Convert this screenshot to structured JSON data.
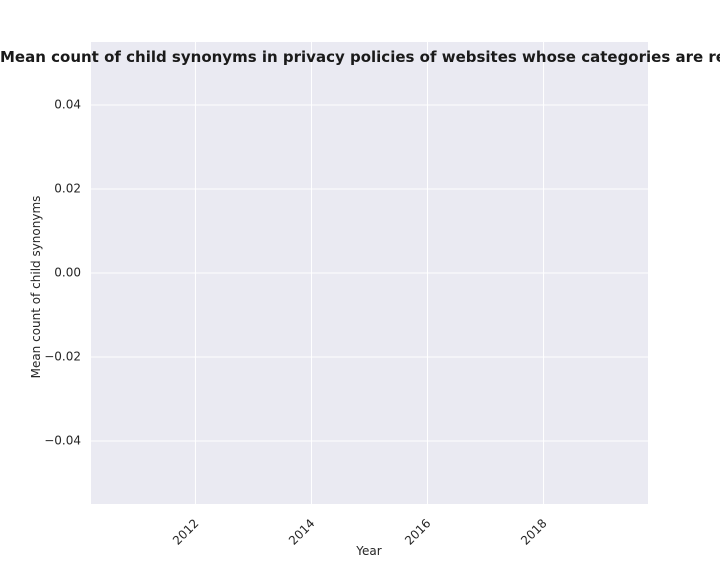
{
  "chart_data": {
    "type": "line",
    "title": "Mean count of child synonyms in privacy policies of websites whose categories are related to illegalcontent;streamingmedia Mean count of child synonyms in privacy policies of websites whose categories are related to illegalcontent;streamingmedia",
    "xlabel": "Year",
    "ylabel": "Mean count of child synonyms",
    "xlim": [
      2010.2,
      2019.8
    ],
    "ylim": [
      -0.055,
      0.055
    ],
    "x_ticks": [
      2012,
      2014,
      2016,
      2018
    ],
    "y_ticks": [
      0.04,
      0.02,
      0.0,
      -0.02,
      -0.04
    ],
    "x_tick_labels": [
      "2012",
      "2014",
      "2016",
      "2018"
    ],
    "y_tick_labels": [
      "0.04",
      "0.02",
      "0.00",
      "−0.02",
      "−0.04"
    ],
    "grid": true,
    "series": [
      {
        "x": [],
        "values": []
      }
    ]
  },
  "style": {
    "plot_background": "#eaeaf2",
    "grid_color": "#ffffff",
    "text_color": "#262626"
  }
}
